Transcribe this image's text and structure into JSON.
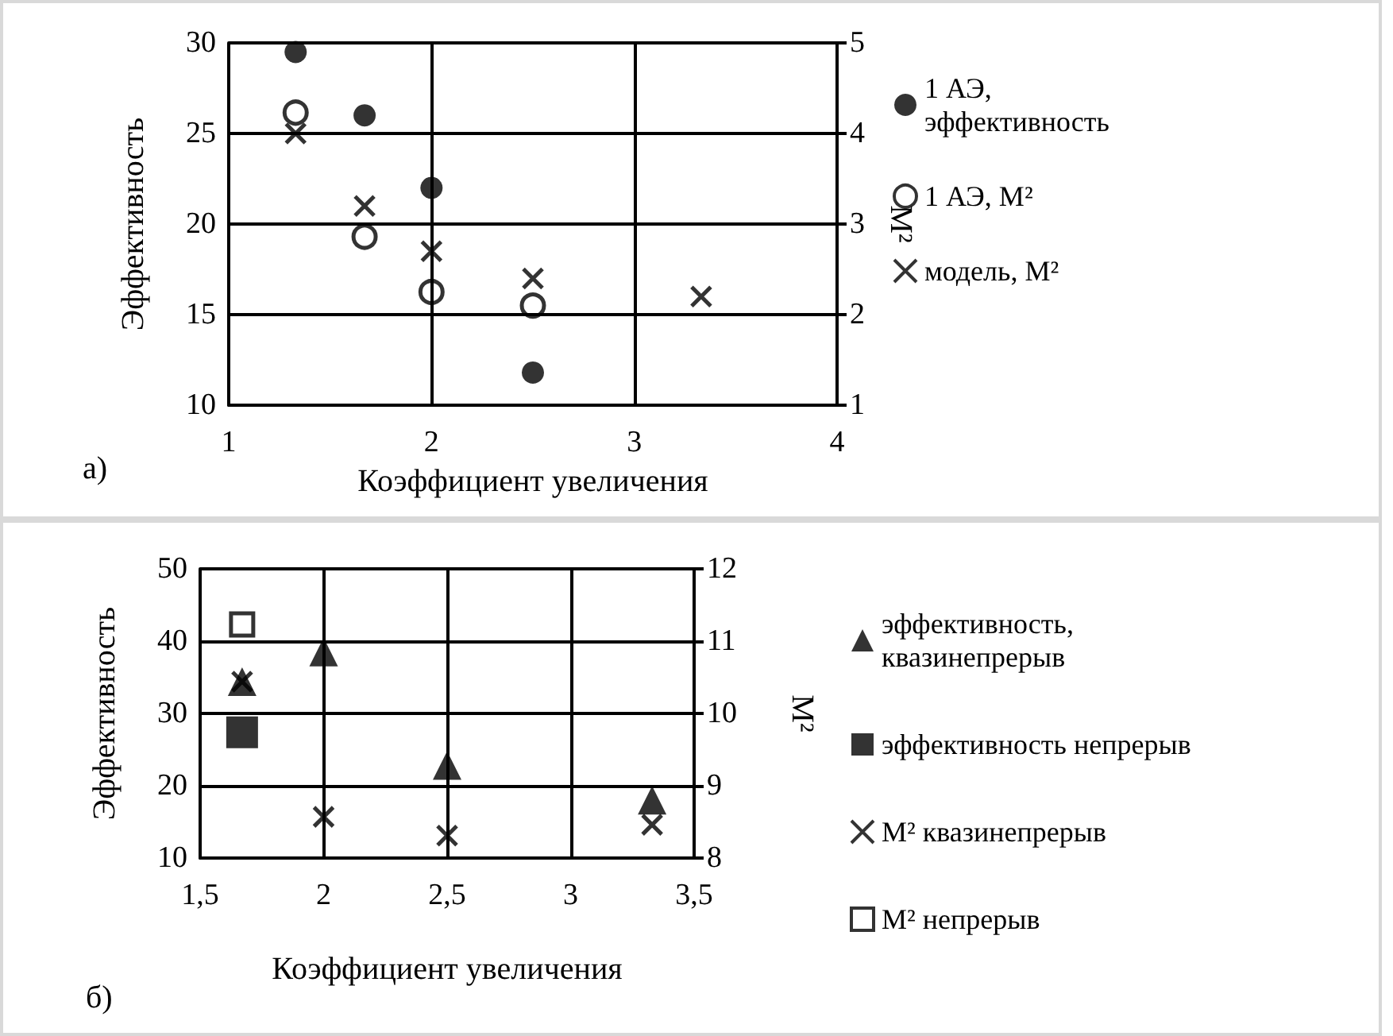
{
  "chart_data": [
    {
      "type": "scatter",
      "xlabel": "Коэффициент увеличения",
      "ylabel": "Эффективность",
      "y2label": "M²",
      "annotations": [
        "а)"
      ],
      "xlim": [
        1,
        4
      ],
      "xticks": [
        1,
        2,
        3,
        4
      ],
      "ylim": [
        10,
        30
      ],
      "yticks": [
        10,
        15,
        20,
        25,
        30
      ],
      "y2lim": [
        1,
        5
      ],
      "y2ticks": [
        1,
        2,
        3,
        4,
        5
      ],
      "grid": true,
      "legend": "right",
      "series": [
        {
          "name": "1 АЭ, эффективность",
          "color": "#000000",
          "marker": "circle",
          "x": [
            1.33,
            1.67,
            2,
            2.5
          ],
          "values": [
            29.5,
            26,
            22,
            11.8
          ]
        },
        {
          "name": "1 АЭ, M²",
          "color": "#000000",
          "marker": "circle",
          "axis": "y2",
          "x": [
            1.33,
            1.67,
            2,
            2.5
          ],
          "values": [
            4.23,
            2.86,
            2.25,
            2.1
          ]
        },
        {
          "name": "модель, M²",
          "color": "#000000",
          "marker": "cross",
          "axis": "y2",
          "x": [
            1.33,
            1.67,
            2,
            2.5,
            3.33
          ],
          "values": [
            4.0,
            3.2,
            2.7,
            2.4,
            2.2
          ]
        }
      ]
    },
    {
      "type": "scatter",
      "xlabel": "Коэффициент увеличения",
      "ylabel": "Эффективность",
      "y2label": "M²",
      "annotations": [
        "б)"
      ],
      "xlim": [
        1.5,
        3.5
      ],
      "xticks": [
        {
          "value": 1.5,
          "label": "1,5"
        },
        2,
        {
          "value": 2.5,
          "label": "2,5"
        },
        3,
        {
          "value": 3.5,
          "label": "3,5"
        }
      ],
      "ylim": [
        10,
        50
      ],
      "yticks": [
        10,
        20,
        30,
        40,
        50
      ],
      "y2lim": [
        8,
        12
      ],
      "y2ticks": [
        8,
        9,
        10,
        11,
        12
      ],
      "grid": true,
      "legend": "right",
      "series": [
        {
          "name": "эффективность, квазинепрерыв",
          "color": "#000000",
          "marker": "triangle",
          "x": [
            1.67,
            2,
            2.5,
            3.33
          ],
          "values": [
            34.4,
            38.5,
            22.8,
            18.0
          ]
        },
        {
          "name": "эффективность непрерыв",
          "color": "#000000",
          "marker": "square",
          "x": [
            1.67
          ],
          "values": [
            27.4
          ]
        },
        {
          "name": "M² квазинепрерыв",
          "color": "#000000",
          "marker": "cross",
          "axis": "y2",
          "x": [
            1.67,
            2,
            2.5,
            3.33
          ],
          "values": [
            10.44,
            8.57,
            8.31,
            8.46
          ]
        },
        {
          "name": "M² непрерыв",
          "color": "#000000",
          "marker": "square",
          "axis": "y2",
          "x": [
            1.67
          ],
          "values": [
            11.23
          ]
        }
      ]
    }
  ]
}
